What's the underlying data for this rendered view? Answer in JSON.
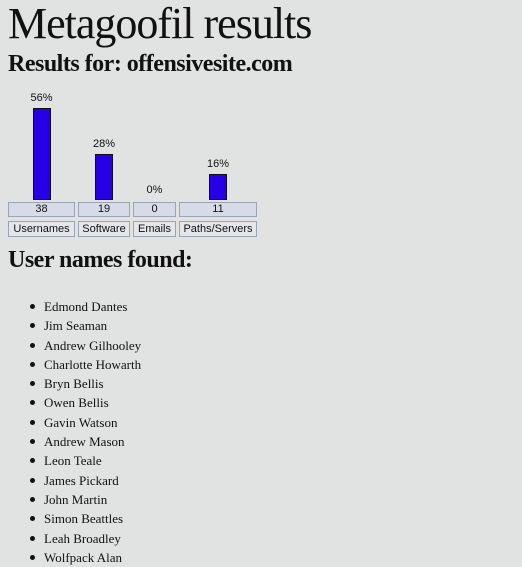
{
  "page": {
    "title": "Metagoofil results",
    "results_for": "Results for: offensivesite.com"
  },
  "chart_data": {
    "type": "bar",
    "title": "",
    "categories": [
      "Usernames",
      "Software",
      "Emails",
      "Paths/Servers"
    ],
    "values": [
      38,
      19,
      0,
      11
    ],
    "percent_labels": [
      "56%",
      "28%",
      "0%",
      "16%"
    ],
    "percentages": [
      56,
      28,
      0,
      16
    ],
    "ylim": [
      0,
      56
    ],
    "grid": false,
    "colors": {
      "bar": "#2800e6",
      "count_cell": "#d6dbe6",
      "name_cell": "#e4e6ea"
    }
  },
  "users_section": {
    "heading": "User names found:",
    "users": [
      "Edmond Dantes",
      "Jim Seaman",
      "Andrew Gilhooley",
      "Charlotte Howarth",
      "Bryn Bellis",
      "Owen Bellis",
      "Gavin Watson",
      "Andrew Mason",
      "Leon Teale",
      "James Pickard",
      "John Martin",
      "Simon Beattles",
      "Leah Broadley",
      "Wolfpack Alan"
    ]
  }
}
